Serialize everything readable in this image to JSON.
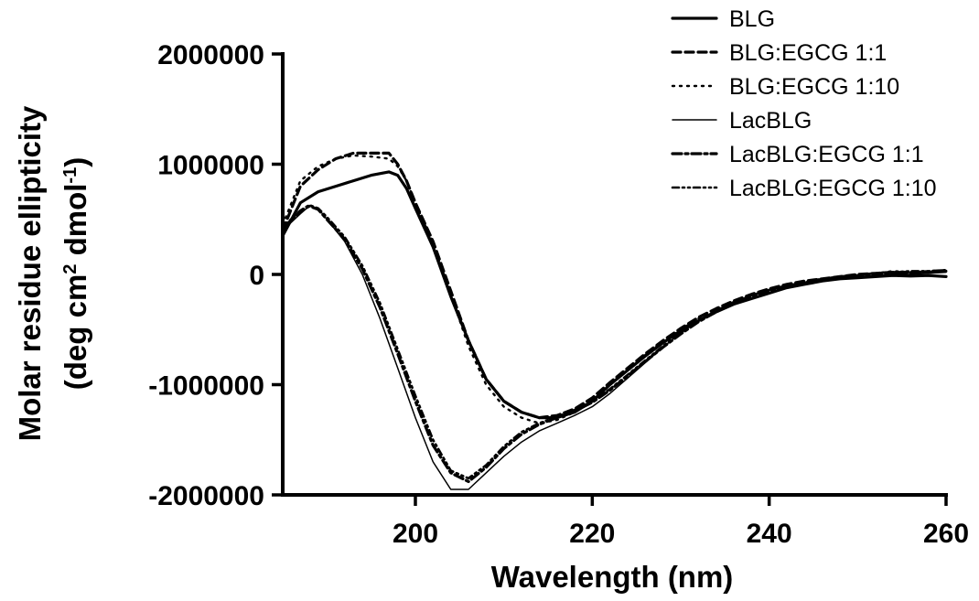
{
  "chart_data": {
    "type": "line",
    "xlabel": "Wavelength (nm)",
    "ylabel_line1": "Molar residue ellipticity",
    "ylabel_line2_parts": [
      "(deg cm",
      "2",
      " dmol",
      "-1",
      ")"
    ],
    "xlim": [
      185,
      260
    ],
    "ylim": [
      -2000000,
      2000000
    ],
    "x_ticks": [
      200,
      220,
      240,
      260
    ],
    "y_ticks": [
      -2000000,
      -1000000,
      0,
      1000000,
      2000000
    ],
    "x_tick_labels": [
      "200",
      "220",
      "240",
      "260"
    ],
    "y_tick_labels": [
      "-2000000",
      "-1000000",
      "0",
      "1000000",
      "2000000"
    ],
    "grid": false,
    "legend_position": "top-right",
    "series": [
      {
        "name": "BLG",
        "style": "solid-thick",
        "points": [
          [
            185,
            350000
          ],
          [
            187,
            650000
          ],
          [
            189,
            750000
          ],
          [
            191,
            800000
          ],
          [
            193,
            850000
          ],
          [
            195,
            900000
          ],
          [
            197,
            930000
          ],
          [
            198,
            900000
          ],
          [
            199,
            780000
          ],
          [
            200,
            600000
          ],
          [
            202,
            250000
          ],
          [
            204,
            -200000
          ],
          [
            206,
            -600000
          ],
          [
            208,
            -950000
          ],
          [
            210,
            -1150000
          ],
          [
            212,
            -1250000
          ],
          [
            214,
            -1300000
          ],
          [
            216,
            -1300000
          ],
          [
            218,
            -1250000
          ],
          [
            220,
            -1150000
          ],
          [
            222,
            -1000000
          ],
          [
            224,
            -870000
          ],
          [
            226,
            -740000
          ],
          [
            228,
            -620000
          ],
          [
            230,
            -510000
          ],
          [
            232,
            -420000
          ],
          [
            234,
            -340000
          ],
          [
            236,
            -270000
          ],
          [
            238,
            -220000
          ],
          [
            240,
            -170000
          ],
          [
            242,
            -120000
          ],
          [
            244,
            -90000
          ],
          [
            246,
            -60000
          ],
          [
            248,
            -40000
          ],
          [
            250,
            -30000
          ],
          [
            252,
            -20000
          ],
          [
            254,
            -10000
          ],
          [
            256,
            -15000
          ],
          [
            258,
            -10000
          ],
          [
            260,
            -20000
          ]
        ]
      },
      {
        "name": "BLG:EGCG 1:1",
        "style": "dashed-thick",
        "points": [
          [
            185,
            400000
          ],
          [
            187,
            800000
          ],
          [
            189,
            950000
          ],
          [
            191,
            1050000
          ],
          [
            193,
            1100000
          ],
          [
            195,
            1100000
          ],
          [
            197,
            1100000
          ],
          [
            198,
            1000000
          ],
          [
            199,
            850000
          ],
          [
            200,
            650000
          ],
          [
            202,
            300000
          ],
          [
            204,
            -150000
          ],
          [
            206,
            -600000
          ],
          [
            208,
            -950000
          ],
          [
            210,
            -1150000
          ],
          [
            212,
            -1250000
          ],
          [
            214,
            -1300000
          ],
          [
            216,
            -1280000
          ],
          [
            218,
            -1220000
          ],
          [
            220,
            -1120000
          ],
          [
            222,
            -980000
          ],
          [
            224,
            -850000
          ],
          [
            226,
            -720000
          ],
          [
            228,
            -600000
          ],
          [
            230,
            -490000
          ],
          [
            232,
            -390000
          ],
          [
            234,
            -310000
          ],
          [
            236,
            -240000
          ],
          [
            238,
            -180000
          ],
          [
            240,
            -130000
          ],
          [
            242,
            -90000
          ],
          [
            244,
            -60000
          ],
          [
            246,
            -40000
          ],
          [
            248,
            -20000
          ],
          [
            250,
            0
          ],
          [
            252,
            10000
          ],
          [
            254,
            20000
          ],
          [
            256,
            15000
          ],
          [
            258,
            20000
          ],
          [
            260,
            30000
          ]
        ]
      },
      {
        "name": "BLG:EGCG 1:10",
        "style": "dotted",
        "points": [
          [
            185,
            450000
          ],
          [
            187,
            850000
          ],
          [
            189,
            980000
          ],
          [
            191,
            1050000
          ],
          [
            193,
            1080000
          ],
          [
            195,
            1070000
          ],
          [
            197,
            1050000
          ],
          [
            198,
            980000
          ],
          [
            199,
            850000
          ],
          [
            200,
            650000
          ],
          [
            202,
            280000
          ],
          [
            204,
            -180000
          ],
          [
            206,
            -650000
          ],
          [
            208,
            -1000000
          ],
          [
            210,
            -1200000
          ],
          [
            212,
            -1300000
          ],
          [
            214,
            -1350000
          ],
          [
            216,
            -1320000
          ],
          [
            218,
            -1250000
          ],
          [
            220,
            -1140000
          ],
          [
            222,
            -1000000
          ],
          [
            224,
            -860000
          ],
          [
            226,
            -730000
          ],
          [
            228,
            -610000
          ],
          [
            230,
            -500000
          ],
          [
            232,
            -400000
          ],
          [
            234,
            -320000
          ],
          [
            236,
            -250000
          ],
          [
            238,
            -190000
          ],
          [
            240,
            -140000
          ],
          [
            242,
            -100000
          ],
          [
            244,
            -70000
          ],
          [
            246,
            -40000
          ],
          [
            248,
            -20000
          ],
          [
            250,
            0
          ],
          [
            252,
            10000
          ],
          [
            254,
            30000
          ],
          [
            256,
            20000
          ],
          [
            258,
            30000
          ],
          [
            260,
            40000
          ]
        ]
      },
      {
        "name": "LacBLG",
        "style": "solid-thin",
        "points": [
          [
            185,
            400000
          ],
          [
            187,
            550000
          ],
          [
            188,
            620000
          ],
          [
            189,
            600000
          ],
          [
            190,
            500000
          ],
          [
            192,
            300000
          ],
          [
            194,
            0
          ],
          [
            196,
            -400000
          ],
          [
            198,
            -850000
          ],
          [
            200,
            -1300000
          ],
          [
            202,
            -1700000
          ],
          [
            204,
            -1950000
          ],
          [
            206,
            -1950000
          ],
          [
            208,
            -1800000
          ],
          [
            210,
            -1650000
          ],
          [
            212,
            -1520000
          ],
          [
            214,
            -1420000
          ],
          [
            216,
            -1350000
          ],
          [
            218,
            -1280000
          ],
          [
            220,
            -1200000
          ],
          [
            222,
            -1080000
          ],
          [
            224,
            -940000
          ],
          [
            226,
            -800000
          ],
          [
            228,
            -660000
          ],
          [
            230,
            -530000
          ],
          [
            232,
            -420000
          ],
          [
            234,
            -330000
          ],
          [
            236,
            -250000
          ],
          [
            238,
            -190000
          ],
          [
            240,
            -140000
          ],
          [
            242,
            -100000
          ],
          [
            244,
            -70000
          ],
          [
            246,
            -50000
          ],
          [
            248,
            -30000
          ],
          [
            250,
            -20000
          ],
          [
            252,
            -10000
          ],
          [
            254,
            0
          ],
          [
            256,
            0
          ],
          [
            258,
            10000
          ],
          [
            260,
            20000
          ]
        ]
      },
      {
        "name": "LacBLG:EGCG 1:1",
        "style": "dashdot-thick",
        "points": [
          [
            185,
            420000
          ],
          [
            187,
            570000
          ],
          [
            188,
            620000
          ],
          [
            189,
            590000
          ],
          [
            190,
            500000
          ],
          [
            192,
            320000
          ],
          [
            194,
            50000
          ],
          [
            196,
            -300000
          ],
          [
            198,
            -720000
          ],
          [
            200,
            -1150000
          ],
          [
            202,
            -1550000
          ],
          [
            204,
            -1800000
          ],
          [
            206,
            -1880000
          ],
          [
            208,
            -1750000
          ],
          [
            210,
            -1580000
          ],
          [
            212,
            -1450000
          ],
          [
            214,
            -1360000
          ],
          [
            216,
            -1300000
          ],
          [
            218,
            -1240000
          ],
          [
            220,
            -1160000
          ],
          [
            222,
            -1050000
          ],
          [
            224,
            -920000
          ],
          [
            226,
            -790000
          ],
          [
            228,
            -660000
          ],
          [
            230,
            -540000
          ],
          [
            232,
            -430000
          ],
          [
            234,
            -340000
          ],
          [
            236,
            -260000
          ],
          [
            238,
            -200000
          ],
          [
            240,
            -150000
          ],
          [
            242,
            -110000
          ],
          [
            244,
            -80000
          ],
          [
            246,
            -50000
          ],
          [
            248,
            -30000
          ],
          [
            250,
            -10000
          ],
          [
            252,
            0
          ],
          [
            254,
            10000
          ],
          [
            256,
            20000
          ],
          [
            258,
            20000
          ],
          [
            260,
            30000
          ]
        ]
      },
      {
        "name": "LacBLG:EGCG 1:10",
        "style": "dashdotdot",
        "points": [
          [
            185,
            430000
          ],
          [
            187,
            580000
          ],
          [
            188,
            630000
          ],
          [
            189,
            600000
          ],
          [
            190,
            520000
          ],
          [
            192,
            340000
          ],
          [
            194,
            80000
          ],
          [
            196,
            -260000
          ],
          [
            198,
            -680000
          ],
          [
            200,
            -1100000
          ],
          [
            202,
            -1500000
          ],
          [
            204,
            -1780000
          ],
          [
            206,
            -1850000
          ],
          [
            208,
            -1730000
          ],
          [
            210,
            -1560000
          ],
          [
            212,
            -1430000
          ],
          [
            214,
            -1350000
          ],
          [
            216,
            -1290000
          ],
          [
            218,
            -1230000
          ],
          [
            220,
            -1150000
          ],
          [
            222,
            -1040000
          ],
          [
            224,
            -910000
          ],
          [
            226,
            -780000
          ],
          [
            228,
            -650000
          ],
          [
            230,
            -530000
          ],
          [
            232,
            -420000
          ],
          [
            234,
            -330000
          ],
          [
            236,
            -250000
          ],
          [
            238,
            -190000
          ],
          [
            240,
            -140000
          ],
          [
            242,
            -100000
          ],
          [
            244,
            -70000
          ],
          [
            246,
            -40000
          ],
          [
            248,
            -20000
          ],
          [
            250,
            0
          ],
          [
            252,
            10000
          ],
          [
            254,
            20000
          ],
          [
            256,
            30000
          ],
          [
            258,
            30000
          ],
          [
            260,
            40000
          ]
        ]
      }
    ]
  }
}
